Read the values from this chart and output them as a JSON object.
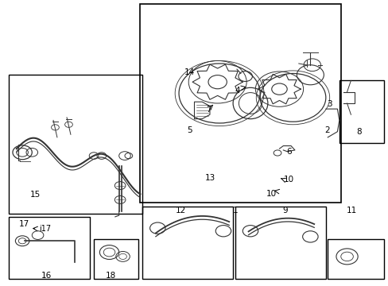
{
  "background_color": "#ffffff",
  "line_color": "#333333",
  "text_color": "#000000",
  "fig_width": 4.89,
  "fig_height": 3.6,
  "dpi": 100
}
